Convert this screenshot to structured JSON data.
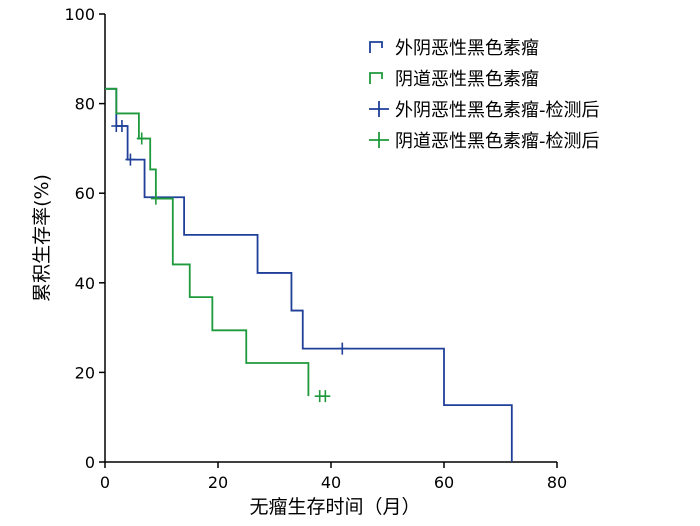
{
  "chart_data": {
    "type": "line",
    "xlabel": "无瘤生存时间（月）",
    "ylabel": "累积生存率(%)",
    "xlim": [
      0,
      80
    ],
    "ylim": [
      0,
      100
    ],
    "xticks": [
      "0",
      "20",
      "40",
      "60",
      "80"
    ],
    "yticks": [
      "0",
      "20",
      "40",
      "60",
      "80",
      "100"
    ],
    "grid": false,
    "legend_position": "top-right",
    "series": [
      {
        "name": "外阴恶性黑色素瘤",
        "color": "#1f3f99",
        "style": "step",
        "x": [
          0,
          2,
          4,
          7,
          14,
          27,
          33,
          35,
          60,
          72,
          72
        ],
        "y": [
          83.3,
          75,
          67.5,
          59.1,
          50.7,
          42.2,
          33.8,
          25.3,
          12.7,
          12.7,
          0
        ]
      },
      {
        "name": "阴道恶性黑色素瘤",
        "color": "#1e9a3c",
        "style": "step",
        "x": [
          0,
          2,
          6,
          8,
          9,
          12,
          15,
          19,
          25,
          36,
          36
        ],
        "y": [
          83.3,
          77.8,
          72.2,
          65.3,
          58.8,
          44.1,
          36.8,
          29.4,
          22.1,
          14.7,
          14.7
        ]
      },
      {
        "name": "外阴恶性黑色素瘤-检测后",
        "color": "#1f3f99",
        "style": "censor",
        "x": [
          2,
          3,
          4.5,
          42
        ],
        "y": [
          75,
          75,
          67.5,
          25.3
        ]
      },
      {
        "name": "阴道恶性黑色素瘤-检测后",
        "color": "#1e9a3c",
        "style": "censor",
        "x": [
          6.5,
          9,
          38,
          39
        ],
        "y": [
          72.2,
          58.8,
          14.7,
          14.7
        ]
      }
    ]
  }
}
